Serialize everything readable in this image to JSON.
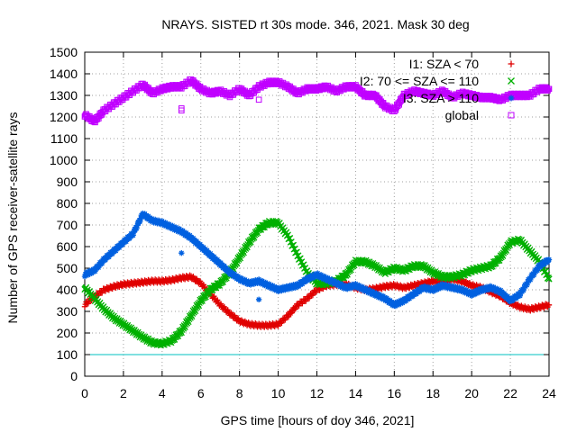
{
  "chart_data": {
    "type": "scatter",
    "title": "NRAYS. SISTED rt 30s mode. 346, 2021. Mask 30 deg",
    "xlabel": "GPS time [hours of doy 346, 2021]",
    "ylabel": "Number of GPS receiver-satellite rays",
    "xlim": [
      0,
      24
    ],
    "ylim": [
      0,
      1500
    ],
    "xticks": [
      "0",
      "2",
      "4",
      "6",
      "8",
      "10",
      "12",
      "14",
      "16",
      "18",
      "20",
      "22",
      "24"
    ],
    "yticks": [
      "0",
      "100",
      "200",
      "300",
      "400",
      "500",
      "600",
      "700",
      "800",
      "900",
      "1000",
      "1100",
      "1200",
      "1300",
      "1400",
      "1500"
    ],
    "grid": true,
    "legend_position": "top-right",
    "threshold_line": {
      "y": 100,
      "color": "#00c0c0"
    },
    "series": [
      {
        "name": "I1: SZA < 70",
        "marker": "+",
        "color": "#e00000",
        "x": [
          0,
          0.5,
          1,
          1.5,
          2,
          2.5,
          3,
          3.5,
          4,
          4.5,
          5,
          5.5,
          6,
          6.5,
          7,
          7.5,
          8,
          8.5,
          9,
          9.5,
          10,
          10.5,
          11,
          11.5,
          12,
          12.5,
          13,
          13.5,
          14,
          14.5,
          15,
          15.5,
          16,
          16.5,
          17,
          17.5,
          18,
          18.5,
          19,
          19.5,
          20,
          20.5,
          21,
          21.5,
          22,
          22.5,
          23,
          23.5,
          24
        ],
        "y": [
          330,
          370,
          400,
          415,
          425,
          430,
          435,
          440,
          440,
          445,
          455,
          460,
          430,
          380,
          330,
          290,
          255,
          240,
          235,
          235,
          240,
          280,
          330,
          360,
          400,
          420,
          425,
          425,
          410,
          400,
          405,
          415,
          420,
          410,
          420,
          430,
          440,
          440,
          450,
          440,
          420,
          410,
          390,
          370,
          340,
          320,
          310,
          320,
          330
        ]
      },
      {
        "name": "I2: 70 <= SZA <= 110",
        "marker": "x",
        "color": "#00b000",
        "x": [
          0,
          0.5,
          1,
          1.5,
          2,
          2.5,
          3,
          3.5,
          4,
          4.5,
          5,
          5.5,
          6,
          6.5,
          7,
          7.5,
          8,
          8.5,
          9,
          9.5,
          10,
          10.5,
          11,
          11.5,
          12,
          12.5,
          13,
          13.5,
          14,
          14.5,
          15,
          15.5,
          16,
          16.5,
          17,
          17.5,
          18,
          18.5,
          19,
          19.5,
          20,
          20.5,
          21,
          21.5,
          22,
          22.5,
          23,
          23.5,
          24
        ],
        "y": [
          410,
          360,
          310,
          270,
          240,
          210,
          180,
          155,
          150,
          165,
          210,
          280,
          350,
          400,
          430,
          480,
          550,
          620,
          680,
          710,
          710,
          650,
          560,
          480,
          430,
          430,
          440,
          470,
          530,
          530,
          510,
          480,
          500,
          490,
          510,
          510,
          480,
          460,
          460,
          470,
          490,
          500,
          510,
          550,
          620,
          630,
          580,
          530,
          450
        ]
      },
      {
        "name": "I3: SZA > 110",
        "marker": "*",
        "color": "#0060e0",
        "x": [
          0,
          0.5,
          1,
          1.5,
          2,
          2.5,
          3,
          3.5,
          4,
          4.5,
          5,
          5.5,
          6,
          6.5,
          7,
          7.5,
          8,
          8.5,
          9,
          9.5,
          10,
          10.5,
          11,
          11.5,
          12,
          12.5,
          13,
          13.5,
          14,
          14.5,
          15,
          15.5,
          16,
          16.5,
          17,
          17.5,
          18,
          18.5,
          19,
          19.5,
          20,
          20.5,
          21,
          21.5,
          22,
          22.5,
          23,
          23.5,
          24
        ],
        "y": [
          470,
          490,
          540,
          580,
          620,
          660,
          750,
          720,
          710,
          690,
          670,
          640,
          600,
          560,
          520,
          480,
          450,
          430,
          440,
          420,
          400,
          410,
          420,
          450,
          470,
          450,
          430,
          410,
          420,
          400,
          380,
          360,
          330,
          350,
          380,
          410,
          400,
          420,
          410,
          400,
          380,
          400,
          410,
          390,
          350,
          380,
          450,
          510,
          540
        ]
      },
      {
        "name": "global",
        "marker": "square",
        "color": "#c000ff",
        "x": [
          0,
          0.5,
          1,
          1.5,
          2,
          2.5,
          3,
          3.5,
          4,
          4.5,
          5,
          5.5,
          6,
          6.5,
          7,
          7.5,
          8,
          8.5,
          9,
          9.5,
          10,
          10.5,
          11,
          11.5,
          12,
          12.5,
          13,
          13.5,
          14,
          14.5,
          15,
          15.5,
          16,
          16.5,
          17,
          17.5,
          18,
          18.5,
          19,
          19.5,
          20,
          20.5,
          21,
          21.5,
          22,
          22.5,
          23,
          23.5,
          24
        ],
        "y": [
          1210,
          1180,
          1230,
          1260,
          1290,
          1320,
          1350,
          1310,
          1330,
          1340,
          1340,
          1370,
          1330,
          1310,
          1320,
          1300,
          1330,
          1300,
          1340,
          1360,
          1360,
          1340,
          1310,
          1330,
          1330,
          1340,
          1320,
          1340,
          1340,
          1300,
          1300,
          1250,
          1230,
          1300,
          1320,
          1310,
          1300,
          1320,
          1290,
          1310,
          1300,
          1290,
          1290,
          1280,
          1300,
          1300,
          1300,
          1330,
          1330
        ]
      }
    ],
    "outliers": [
      {
        "series": 2,
        "x": 5.0,
        "y": 570
      },
      {
        "series": 2,
        "x": 9.0,
        "y": 355
      },
      {
        "series": 3,
        "x": 5.0,
        "y": 1240
      },
      {
        "series": 3,
        "x": 5.0,
        "y": 1230
      },
      {
        "series": 3,
        "x": 9.0,
        "y": 1280
      }
    ]
  }
}
